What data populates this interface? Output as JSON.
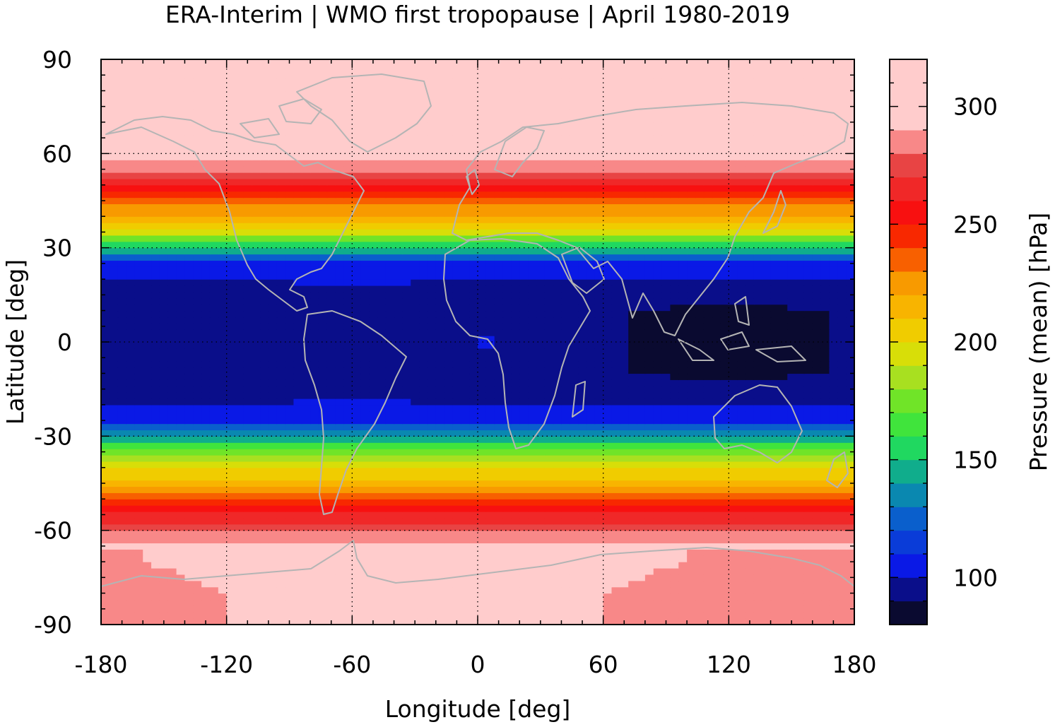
{
  "chart_data": {
    "type": "heatmap",
    "title": "ERA-Interim | WMO first tropopause | April 1980-2019",
    "xlabel": "Longitude [deg]",
    "ylabel": "Latitude [deg]",
    "colorbar_label": "Pressure (mean) [hPa]",
    "xlim": [
      -180,
      180
    ],
    "ylim": [
      -90,
      90
    ],
    "x_ticks": [
      -180,
      -120,
      -60,
      0,
      60,
      120,
      180
    ],
    "y_ticks": [
      -90,
      -60,
      -30,
      0,
      30,
      60,
      90
    ],
    "x_tick_labels": [
      "-180",
      "-120",
      "-60",
      "0",
      "60",
      "120",
      "180"
    ],
    "y_tick_labels": [
      "-90",
      "-60",
      "-30",
      "0",
      "30",
      "60",
      "90"
    ],
    "colorbar": {
      "range": [
        80,
        320
      ],
      "ticks": [
        100,
        150,
        200,
        250,
        300
      ],
      "tick_labels": [
        "100",
        "150",
        "200",
        "250",
        "300"
      ],
      "step": 10,
      "colors": [
        "#0a0a30",
        "#0a0e8a",
        "#0a19e6",
        "#0a3cd8",
        "#0a5fcc",
        "#0a88b0",
        "#10ad8c",
        "#20d860",
        "#40e43c",
        "#70e428",
        "#a8e020",
        "#d8de08",
        "#f0cc00",
        "#f8b400",
        "#f89a00",
        "#f86000",
        "#f82800",
        "#f81010",
        "#f02828",
        "#e84444",
        "#f88888",
        "#ffcccc"
      ]
    },
    "grid": "dotted",
    "zonal_profile": {
      "lat": [
        -90,
        -80,
        -70,
        -65,
        -60,
        -55,
        -50,
        -45,
        -40,
        -35,
        -30,
        -25,
        -20,
        -10,
        0,
        10,
        20,
        25,
        30,
        35,
        40,
        45,
        50,
        55,
        60,
        65,
        70,
        80,
        90
      ],
      "pressure": [
        290,
        290,
        295,
        295,
        280,
        262,
        238,
        215,
        198,
        175,
        140,
        108,
        98,
        92,
        92,
        92,
        98,
        108,
        150,
        195,
        218,
        235,
        258,
        280,
        295,
        300,
        305,
        312,
        318
      ]
    },
    "overlay": "coastlines",
    "colors": {
      "coastline": "#b4b4b4",
      "grid": "#000000"
    }
  }
}
